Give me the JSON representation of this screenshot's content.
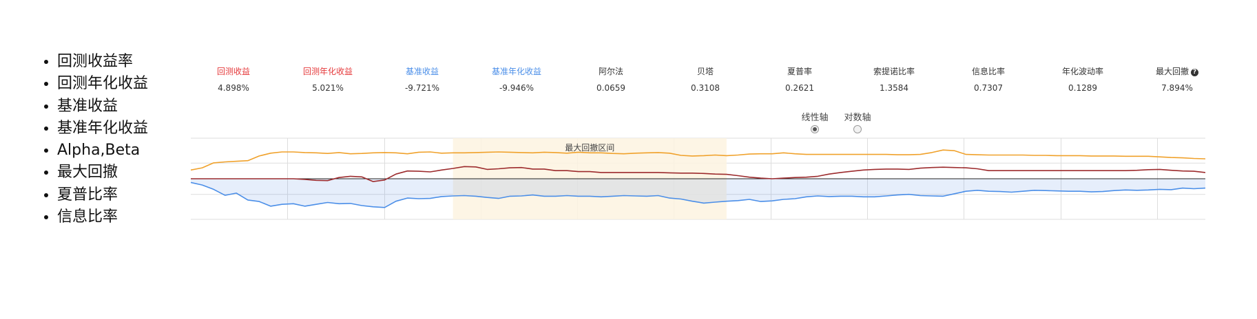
{
  "bullets": [
    "回测收益率",
    "回测年化收益",
    "基准收益",
    "基准年化收益",
    "Alpha,Beta",
    "最大回撤",
    "夏普比率",
    "信息比率"
  ],
  "stats": [
    {
      "label": "回测收益",
      "value": "4.898%",
      "color": "#e5393b"
    },
    {
      "label": "回测年化收益",
      "value": "5.021%",
      "color": "#e5393b"
    },
    {
      "label": "基准收益",
      "value": "-9.721%",
      "color": "#4a8ee8"
    },
    {
      "label": "基准年化收益",
      "value": "-9.946%",
      "color": "#4a8ee8"
    },
    {
      "label": "阿尔法",
      "value": "0.0659",
      "color": "#333333"
    },
    {
      "label": "贝塔",
      "value": "0.3108",
      "color": "#333333"
    },
    {
      "label": "夏普率",
      "value": "0.2621",
      "color": "#333333"
    },
    {
      "label": "索提诺比率",
      "value": "1.3584",
      "color": "#333333"
    },
    {
      "label": "信息比率",
      "value": "0.7307",
      "color": "#333333"
    },
    {
      "label": "年化波动率",
      "value": "0.1289",
      "color": "#333333"
    },
    {
      "label": "最大回撤",
      "value": "7.894%",
      "color": "#333333",
      "help_icon": "question-circle-icon"
    }
  ],
  "axis_options": [
    {
      "label": "线性轴",
      "selected": true
    },
    {
      "label": "对数轴",
      "selected": false
    }
  ],
  "chart_data": {
    "type": "line",
    "drawdown_band_label": "最大回撤区间",
    "grid": true,
    "series": [
      {
        "color": "#f0a12a",
        "values": [
          2.8,
          3.5,
          5.1,
          5.4,
          5.6,
          5.8,
          7.3,
          8.2,
          8.6,
          8.6,
          8.4,
          8.3,
          8.1,
          8.4,
          8.0,
          8.1,
          8.3,
          8.4,
          8.3,
          8.0,
          8.5,
          8.6,
          8.2,
          8.3,
          8.3,
          8.4,
          8.5,
          8.6,
          8.5,
          8.4,
          8.3,
          8.5,
          8.4,
          8.2,
          8.5,
          8.3,
          8.3,
          8.1,
          8.0,
          8.2,
          8.3,
          8.4,
          8.2,
          7.5,
          7.3,
          7.4,
          7.6,
          7.4,
          7.6,
          7.9,
          8.0,
          8.0,
          8.3,
          8.0,
          7.8,
          7.8,
          7.8,
          7.8,
          7.8,
          7.8,
          7.8,
          7.8,
          7.7,
          7.7,
          7.8,
          8.4,
          9.2,
          9.0,
          7.8,
          7.7,
          7.6,
          7.6,
          7.6,
          7.6,
          7.5,
          7.5,
          7.4,
          7.4,
          7.4,
          7.3,
          7.3,
          7.3,
          7.2,
          7.2,
          7.2,
          7.0,
          6.8,
          6.7,
          6.5,
          6.4
        ]
      },
      {
        "color": "#9c2a2c",
        "values": [
          0.0,
          0.0,
          0.0,
          0.0,
          0.0,
          0.0,
          0.0,
          0.0,
          0.0,
          0.0,
          -0.2,
          -0.5,
          -0.6,
          0.4,
          0.8,
          0.6,
          -0.9,
          -0.4,
          1.5,
          2.5,
          2.4,
          2.2,
          2.8,
          3.3,
          3.9,
          3.8,
          3.0,
          3.2,
          3.5,
          3.6,
          3.1,
          3.1,
          2.6,
          2.6,
          2.3,
          2.3,
          2.0,
          2.0,
          2.0,
          2.0,
          2.0,
          2.0,
          1.9,
          1.8,
          1.8,
          1.7,
          1.5,
          1.4,
          1.0,
          0.5,
          0.2,
          0.0,
          0.2,
          0.4,
          0.5,
          0.8,
          1.5,
          2.0,
          2.4,
          2.8,
          3.0,
          3.1,
          3.1,
          3.0,
          3.4,
          3.6,
          3.7,
          3.6,
          3.5,
          3.2,
          2.6,
          2.6,
          2.6,
          2.6,
          2.6,
          2.6,
          2.6,
          2.6,
          2.6,
          2.6,
          2.6,
          2.6,
          2.6,
          2.7,
          2.9,
          3.0,
          2.7,
          2.5,
          2.4,
          2.0
        ]
      },
      {
        "color": "#4a8ee8",
        "values": [
          -1.2,
          -2.0,
          -3.4,
          -5.3,
          -4.6,
          -6.8,
          -7.3,
          -8.8,
          -8.2,
          -8.0,
          -8.8,
          -8.2,
          -7.6,
          -8.0,
          -7.9,
          -8.6,
          -9.0,
          -9.2,
          -7.2,
          -6.2,
          -6.4,
          -6.3,
          -5.7,
          -5.5,
          -5.4,
          -5.6,
          -6.0,
          -6.3,
          -5.6,
          -5.5,
          -5.2,
          -5.6,
          -5.6,
          -5.4,
          -5.6,
          -5.6,
          -5.8,
          -5.6,
          -5.4,
          -5.5,
          -5.6,
          -5.4,
          -6.2,
          -6.5,
          -7.2,
          -7.8,
          -7.5,
          -7.2,
          -7.0,
          -6.6,
          -7.3,
          -7.1,
          -6.6,
          -6.4,
          -5.8,
          -5.5,
          -5.7,
          -5.6,
          -5.6,
          -5.8,
          -5.8,
          -5.5,
          -5.2,
          -5.0,
          -5.4,
          -5.5,
          -5.6,
          -4.8,
          -4.0,
          -3.7,
          -4.0,
          -4.1,
          -4.3,
          -4.0,
          -3.7,
          -3.8,
          -3.9,
          -4.0,
          -4.0,
          -4.2,
          -4.1,
          -3.8,
          -3.6,
          -3.7,
          -3.6,
          -3.4,
          -3.5,
          -3.0,
          -3.2,
          -3.0
        ]
      }
    ]
  }
}
